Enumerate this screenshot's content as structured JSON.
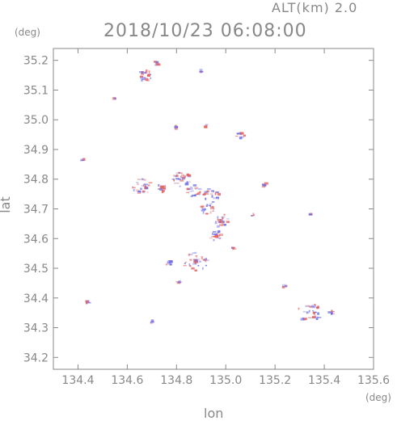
{
  "chart_data": {
    "type": "scatter",
    "title": "2018/10/23 06:08:00",
    "subtitle": "ALT(km) 2.0",
    "xlabel": "lon",
    "ylabel": "lat",
    "x_unit": "(deg)",
    "y_unit": "(deg)",
    "xlim": [
      134.3,
      135.6
    ],
    "ylim": [
      34.16,
      35.24
    ],
    "xticks": [
      "134.4",
      "134.6",
      "134.8",
      "135.0",
      "135.2",
      "135.4",
      "135.6"
    ],
    "yticks": [
      "34.2",
      "34.3",
      "34.4",
      "34.5",
      "34.6",
      "34.7",
      "34.8",
      "34.9",
      "35.0",
      "35.1",
      "35.2"
    ],
    "grid": false,
    "colors": {
      "positive": "#e06060",
      "negative": "#6a6ae8",
      "axis": "#888888"
    },
    "series": [
      {
        "values": [
          {
            "lon": 134.67,
            "lat": 35.15,
            "r": 0.03
          },
          {
            "lon": 134.72,
            "lat": 35.19,
            "r": 0.012
          },
          {
            "lon": 134.9,
            "lat": 35.165,
            "r": 0.006
          },
          {
            "lon": 134.55,
            "lat": 35.07,
            "r": 0.004
          },
          {
            "lon": 134.8,
            "lat": 34.975,
            "r": 0.004
          },
          {
            "lon": 134.92,
            "lat": 34.98,
            "r": 0.004
          },
          {
            "lon": 135.06,
            "lat": 34.945,
            "r": 0.02
          },
          {
            "lon": 134.42,
            "lat": 34.865,
            "r": 0.005
          },
          {
            "lon": 134.66,
            "lat": 34.775,
            "r": 0.04
          },
          {
            "lon": 134.74,
            "lat": 34.77,
            "r": 0.02
          },
          {
            "lon": 134.82,
            "lat": 34.8,
            "r": 0.04
          },
          {
            "lon": 134.87,
            "lat": 34.76,
            "r": 0.03
          },
          {
            "lon": 134.94,
            "lat": 34.745,
            "r": 0.035
          },
          {
            "lon": 134.93,
            "lat": 34.7,
            "r": 0.03
          },
          {
            "lon": 134.98,
            "lat": 34.66,
            "r": 0.035
          },
          {
            "lon": 134.96,
            "lat": 34.61,
            "r": 0.025
          },
          {
            "lon": 135.03,
            "lat": 34.565,
            "r": 0.008
          },
          {
            "lon": 135.11,
            "lat": 34.68,
            "r": 0.005
          },
          {
            "lon": 135.16,
            "lat": 34.78,
            "r": 0.01
          },
          {
            "lon": 134.77,
            "lat": 34.52,
            "r": 0.015
          },
          {
            "lon": 134.88,
            "lat": 34.52,
            "r": 0.05
          },
          {
            "lon": 134.81,
            "lat": 34.455,
            "r": 0.008
          },
          {
            "lon": 135.24,
            "lat": 34.44,
            "r": 0.008
          },
          {
            "lon": 135.35,
            "lat": 34.68,
            "r": 0.004
          },
          {
            "lon": 135.34,
            "lat": 34.35,
            "r": 0.05
          },
          {
            "lon": 135.43,
            "lat": 34.35,
            "r": 0.01
          },
          {
            "lon": 134.7,
            "lat": 34.32,
            "r": 0.006
          },
          {
            "lon": 134.44,
            "lat": 34.385,
            "r": 0.003
          }
        ]
      }
    ]
  }
}
